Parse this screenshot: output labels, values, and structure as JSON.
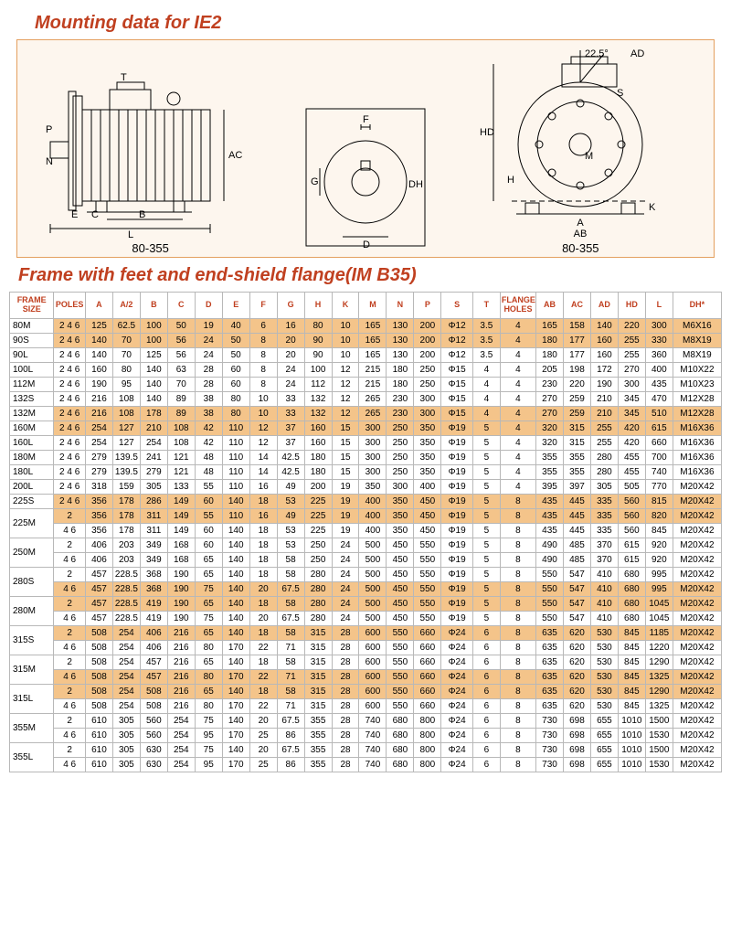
{
  "title1": "Mounting data for IE2",
  "title2": "Frame with feet and end-shield flange(IM B35)",
  "diagLabels": {
    "left": "80-355",
    "right": "80-355"
  },
  "diag": {
    "left": {
      "L": "L",
      "B": "B",
      "C": "C",
      "E": "E",
      "P": "P",
      "N": "N",
      "T": "T",
      "AC": "AC"
    },
    "mid": {
      "F": "F",
      "G": "G",
      "D": "D",
      "DH": "DH"
    },
    "right": {
      "A": "A",
      "AB": "AB",
      "K": "K",
      "H": "H",
      "M": "M",
      "HD": "HD",
      "S": "S",
      "AD": "AD",
      "ang": "22.5°"
    }
  },
  "headers": [
    "FRAME\nSIZE",
    "POLES",
    "A",
    "A/2",
    "B",
    "C",
    "D",
    "E",
    "F",
    "G",
    "H",
    "K",
    "M",
    "N",
    "P",
    "S",
    "T",
    "FLANGE\nHOLES",
    "AB",
    "AC",
    "AD",
    "HD",
    "L",
    "DH*"
  ],
  "rows": [
    {
      "fs": "80M",
      "span": 1,
      "sub": [
        {
          "hl": true,
          "p": "2 4 6",
          "v": [
            "125",
            "62.5",
            "100",
            "50",
            "19",
            "40",
            "6",
            "16",
            "80",
            "10",
            "165",
            "130",
            "200",
            "Φ12",
            "3.5",
            "4",
            "165",
            "158",
            "140",
            "220",
            "300",
            "M6X16"
          ]
        }
      ]
    },
    {
      "fs": "90S",
      "span": 1,
      "sub": [
        {
          "hl": true,
          "p": "2 4 6",
          "v": [
            "140",
            "70",
            "100",
            "56",
            "24",
            "50",
            "8",
            "20",
            "90",
            "10",
            "165",
            "130",
            "200",
            "Φ12",
            "3.5",
            "4",
            "180",
            "177",
            "160",
            "255",
            "330",
            "M8X19"
          ]
        }
      ]
    },
    {
      "fs": "90L",
      "span": 1,
      "sub": [
        {
          "hl": false,
          "p": "2 4 6",
          "v": [
            "140",
            "70",
            "125",
            "56",
            "24",
            "50",
            "8",
            "20",
            "90",
            "10",
            "165",
            "130",
            "200",
            "Φ12",
            "3.5",
            "4",
            "180",
            "177",
            "160",
            "255",
            "360",
            "M8X19"
          ]
        }
      ]
    },
    {
      "fs": "100L",
      "span": 1,
      "sub": [
        {
          "hl": false,
          "p": "2 4 6",
          "v": [
            "160",
            "80",
            "140",
            "63",
            "28",
            "60",
            "8",
            "24",
            "100",
            "12",
            "215",
            "180",
            "250",
            "Φ15",
            "4",
            "4",
            "205",
            "198",
            "172",
            "270",
            "400",
            "M10X22"
          ]
        }
      ]
    },
    {
      "fs": "112M",
      "span": 1,
      "sub": [
        {
          "hl": false,
          "p": "2 4 6",
          "v": [
            "190",
            "95",
            "140",
            "70",
            "28",
            "60",
            "8",
            "24",
            "112",
            "12",
            "215",
            "180",
            "250",
            "Φ15",
            "4",
            "4",
            "230",
            "220",
            "190",
            "300",
            "435",
            "M10X23"
          ]
        }
      ]
    },
    {
      "fs": "132S",
      "span": 1,
      "sub": [
        {
          "hl": false,
          "p": "2 4 6",
          "v": [
            "216",
            "108",
            "140",
            "89",
            "38",
            "80",
            "10",
            "33",
            "132",
            "12",
            "265",
            "230",
            "300",
            "Φ15",
            "4",
            "4",
            "270",
            "259",
            "210",
            "345",
            "470",
            "M12X28"
          ]
        }
      ]
    },
    {
      "fs": "132M",
      "span": 1,
      "sub": [
        {
          "hl": true,
          "p": "2 4 6",
          "v": [
            "216",
            "108",
            "178",
            "89",
            "38",
            "80",
            "10",
            "33",
            "132",
            "12",
            "265",
            "230",
            "300",
            "Φ15",
            "4",
            "4",
            "270",
            "259",
            "210",
            "345",
            "510",
            "M12X28"
          ]
        }
      ]
    },
    {
      "fs": "160M",
      "span": 1,
      "sub": [
        {
          "hl": true,
          "p": "2 4 6",
          "v": [
            "254",
            "127",
            "210",
            "108",
            "42",
            "110",
            "12",
            "37",
            "160",
            "15",
            "300",
            "250",
            "350",
            "Φ19",
            "5",
            "4",
            "320",
            "315",
            "255",
            "420",
            "615",
            "M16X36"
          ]
        }
      ]
    },
    {
      "fs": "160L",
      "span": 1,
      "sub": [
        {
          "hl": false,
          "p": "2 4 6",
          "v": [
            "254",
            "127",
            "254",
            "108",
            "42",
            "110",
            "12",
            "37",
            "160",
            "15",
            "300",
            "250",
            "350",
            "Φ19",
            "5",
            "4",
            "320",
            "315",
            "255",
            "420",
            "660",
            "M16X36"
          ]
        }
      ]
    },
    {
      "fs": "180M",
      "span": 1,
      "sub": [
        {
          "hl": false,
          "p": "2 4 6",
          "v": [
            "279",
            "139.5",
            "241",
            "121",
            "48",
            "110",
            "14",
            "42.5",
            "180",
            "15",
            "300",
            "250",
            "350",
            "Φ19",
            "5",
            "4",
            "355",
            "355",
            "280",
            "455",
            "700",
            "M16X36"
          ]
        }
      ]
    },
    {
      "fs": "180L",
      "span": 1,
      "sub": [
        {
          "hl": false,
          "p": "2 4 6",
          "v": [
            "279",
            "139.5",
            "279",
            "121",
            "48",
            "110",
            "14",
            "42.5",
            "180",
            "15",
            "300",
            "250",
            "350",
            "Φ19",
            "5",
            "4",
            "355",
            "355",
            "280",
            "455",
            "740",
            "M16X36"
          ]
        }
      ]
    },
    {
      "fs": "200L",
      "span": 1,
      "sub": [
        {
          "hl": false,
          "p": "2 4 6",
          "v": [
            "318",
            "159",
            "305",
            "133",
            "55",
            "110",
            "16",
            "49",
            "200",
            "19",
            "350",
            "300",
            "400",
            "Φ19",
            "5",
            "4",
            "395",
            "397",
            "305",
            "505",
            "770",
            "M20X42"
          ]
        }
      ]
    },
    {
      "fs": "225S",
      "span": 1,
      "sub": [
        {
          "hl": true,
          "p": "2 4 6",
          "v": [
            "356",
            "178",
            "286",
            "149",
            "60",
            "140",
            "18",
            "53",
            "225",
            "19",
            "400",
            "350",
            "450",
            "Φ19",
            "5",
            "8",
            "435",
            "445",
            "335",
            "560",
            "815",
            "M20X42"
          ]
        }
      ]
    },
    {
      "fs": "225M",
      "span": 2,
      "sub": [
        {
          "hl": true,
          "p": "2",
          "v": [
            "356",
            "178",
            "311",
            "149",
            "55",
            "110",
            "16",
            "49",
            "225",
            "19",
            "400",
            "350",
            "450",
            "Φ19",
            "5",
            "8",
            "435",
            "445",
            "335",
            "560",
            "820",
            "M20X42"
          ]
        },
        {
          "hl": false,
          "p": "4 6",
          "v": [
            "356",
            "178",
            "311",
            "149",
            "60",
            "140",
            "18",
            "53",
            "225",
            "19",
            "400",
            "350",
            "450",
            "Φ19",
            "5",
            "8",
            "435",
            "445",
            "335",
            "560",
            "845",
            "M20X42"
          ]
        }
      ]
    },
    {
      "fs": "250M",
      "span": 2,
      "sub": [
        {
          "hl": false,
          "p": "2",
          "v": [
            "406",
            "203",
            "349",
            "168",
            "60",
            "140",
            "18",
            "53",
            "250",
            "24",
            "500",
            "450",
            "550",
            "Φ19",
            "5",
            "8",
            "490",
            "485",
            "370",
            "615",
            "920",
            "M20X42"
          ]
        },
        {
          "hl": false,
          "p": "4 6",
          "v": [
            "406",
            "203",
            "349",
            "168",
            "65",
            "140",
            "18",
            "58",
            "250",
            "24",
            "500",
            "450",
            "550",
            "Φ19",
            "5",
            "8",
            "490",
            "485",
            "370",
            "615",
            "920",
            "M20X42"
          ]
        }
      ]
    },
    {
      "fs": "280S",
      "span": 2,
      "sub": [
        {
          "hl": false,
          "p": "2",
          "v": [
            "457",
            "228.5",
            "368",
            "190",
            "65",
            "140",
            "18",
            "58",
            "280",
            "24",
            "500",
            "450",
            "550",
            "Φ19",
            "5",
            "8",
            "550",
            "547",
            "410",
            "680",
            "995",
            "M20X42"
          ]
        },
        {
          "hl": true,
          "p": "4 6",
          "v": [
            "457",
            "228.5",
            "368",
            "190",
            "75",
            "140",
            "20",
            "67.5",
            "280",
            "24",
            "500",
            "450",
            "550",
            "Φ19",
            "5",
            "8",
            "550",
            "547",
            "410",
            "680",
            "995",
            "M20X42"
          ]
        }
      ]
    },
    {
      "fs": "280M",
      "span": 2,
      "sub": [
        {
          "hl": true,
          "p": "2",
          "v": [
            "457",
            "228.5",
            "419",
            "190",
            "65",
            "140",
            "18",
            "58",
            "280",
            "24",
            "500",
            "450",
            "550",
            "Φ19",
            "5",
            "8",
            "550",
            "547",
            "410",
            "680",
            "1045",
            "M20X42"
          ]
        },
        {
          "hl": false,
          "p": "4 6",
          "v": [
            "457",
            "228.5",
            "419",
            "190",
            "75",
            "140",
            "20",
            "67.5",
            "280",
            "24",
            "500",
            "450",
            "550",
            "Φ19",
            "5",
            "8",
            "550",
            "547",
            "410",
            "680",
            "1045",
            "M20X42"
          ]
        }
      ]
    },
    {
      "fs": "315S",
      "span": 2,
      "sub": [
        {
          "hl": true,
          "p": "2",
          "v": [
            "508",
            "254",
            "406",
            "216",
            "65",
            "140",
            "18",
            "58",
            "315",
            "28",
            "600",
            "550",
            "660",
            "Φ24",
            "6",
            "8",
            "635",
            "620",
            "530",
            "845",
            "1185",
            "M20X42"
          ]
        },
        {
          "hl": false,
          "p": "4 6",
          "v": [
            "508",
            "254",
            "406",
            "216",
            "80",
            "170",
            "22",
            "71",
            "315",
            "28",
            "600",
            "550",
            "660",
            "Φ24",
            "6",
            "8",
            "635",
            "620",
            "530",
            "845",
            "1220",
            "M20X42"
          ]
        }
      ]
    },
    {
      "fs": "315M",
      "span": 2,
      "sub": [
        {
          "hl": false,
          "p": "2",
          "v": [
            "508",
            "254",
            "457",
            "216",
            "65",
            "140",
            "18",
            "58",
            "315",
            "28",
            "600",
            "550",
            "660",
            "Φ24",
            "6",
            "8",
            "635",
            "620",
            "530",
            "845",
            "1290",
            "M20X42"
          ]
        },
        {
          "hl": true,
          "p": "4 6",
          "v": [
            "508",
            "254",
            "457",
            "216",
            "80",
            "170",
            "22",
            "71",
            "315",
            "28",
            "600",
            "550",
            "660",
            "Φ24",
            "6",
            "8",
            "635",
            "620",
            "530",
            "845",
            "1325",
            "M20X42"
          ]
        }
      ]
    },
    {
      "fs": "315L",
      "span": 2,
      "sub": [
        {
          "hl": true,
          "p": "2",
          "v": [
            "508",
            "254",
            "508",
            "216",
            "65",
            "140",
            "18",
            "58",
            "315",
            "28",
            "600",
            "550",
            "660",
            "Φ24",
            "6",
            "8",
            "635",
            "620",
            "530",
            "845",
            "1290",
            "M20X42"
          ]
        },
        {
          "hl": false,
          "p": "4 6",
          "v": [
            "508",
            "254",
            "508",
            "216",
            "80",
            "170",
            "22",
            "71",
            "315",
            "28",
            "600",
            "550",
            "660",
            "Φ24",
            "6",
            "8",
            "635",
            "620",
            "530",
            "845",
            "1325",
            "M20X42"
          ]
        }
      ]
    },
    {
      "fs": "355M",
      "span": 2,
      "sub": [
        {
          "hl": false,
          "p": "2",
          "v": [
            "610",
            "305",
            "560",
            "254",
            "75",
            "140",
            "20",
            "67.5",
            "355",
            "28",
            "740",
            "680",
            "800",
            "Φ24",
            "6",
            "8",
            "730",
            "698",
            "655",
            "1010",
            "1500",
            "M20X42"
          ]
        },
        {
          "hl": false,
          "p": "4 6",
          "v": [
            "610",
            "305",
            "560",
            "254",
            "95",
            "170",
            "25",
            "86",
            "355",
            "28",
            "740",
            "680",
            "800",
            "Φ24",
            "6",
            "8",
            "730",
            "698",
            "655",
            "1010",
            "1530",
            "M20X42"
          ]
        }
      ]
    },
    {
      "fs": "355L",
      "span": 2,
      "sub": [
        {
          "hl": false,
          "p": "2",
          "v": [
            "610",
            "305",
            "630",
            "254",
            "75",
            "140",
            "20",
            "67.5",
            "355",
            "28",
            "740",
            "680",
            "800",
            "Φ24",
            "6",
            "8",
            "730",
            "698",
            "655",
            "1010",
            "1500",
            "M20X42"
          ]
        },
        {
          "hl": false,
          "p": "4 6",
          "v": [
            "610",
            "305",
            "630",
            "254",
            "95",
            "170",
            "25",
            "86",
            "355",
            "28",
            "740",
            "680",
            "800",
            "Φ24",
            "6",
            "8",
            "730",
            "698",
            "655",
            "1010",
            "1530",
            "M20X42"
          ]
        }
      ]
    }
  ]
}
